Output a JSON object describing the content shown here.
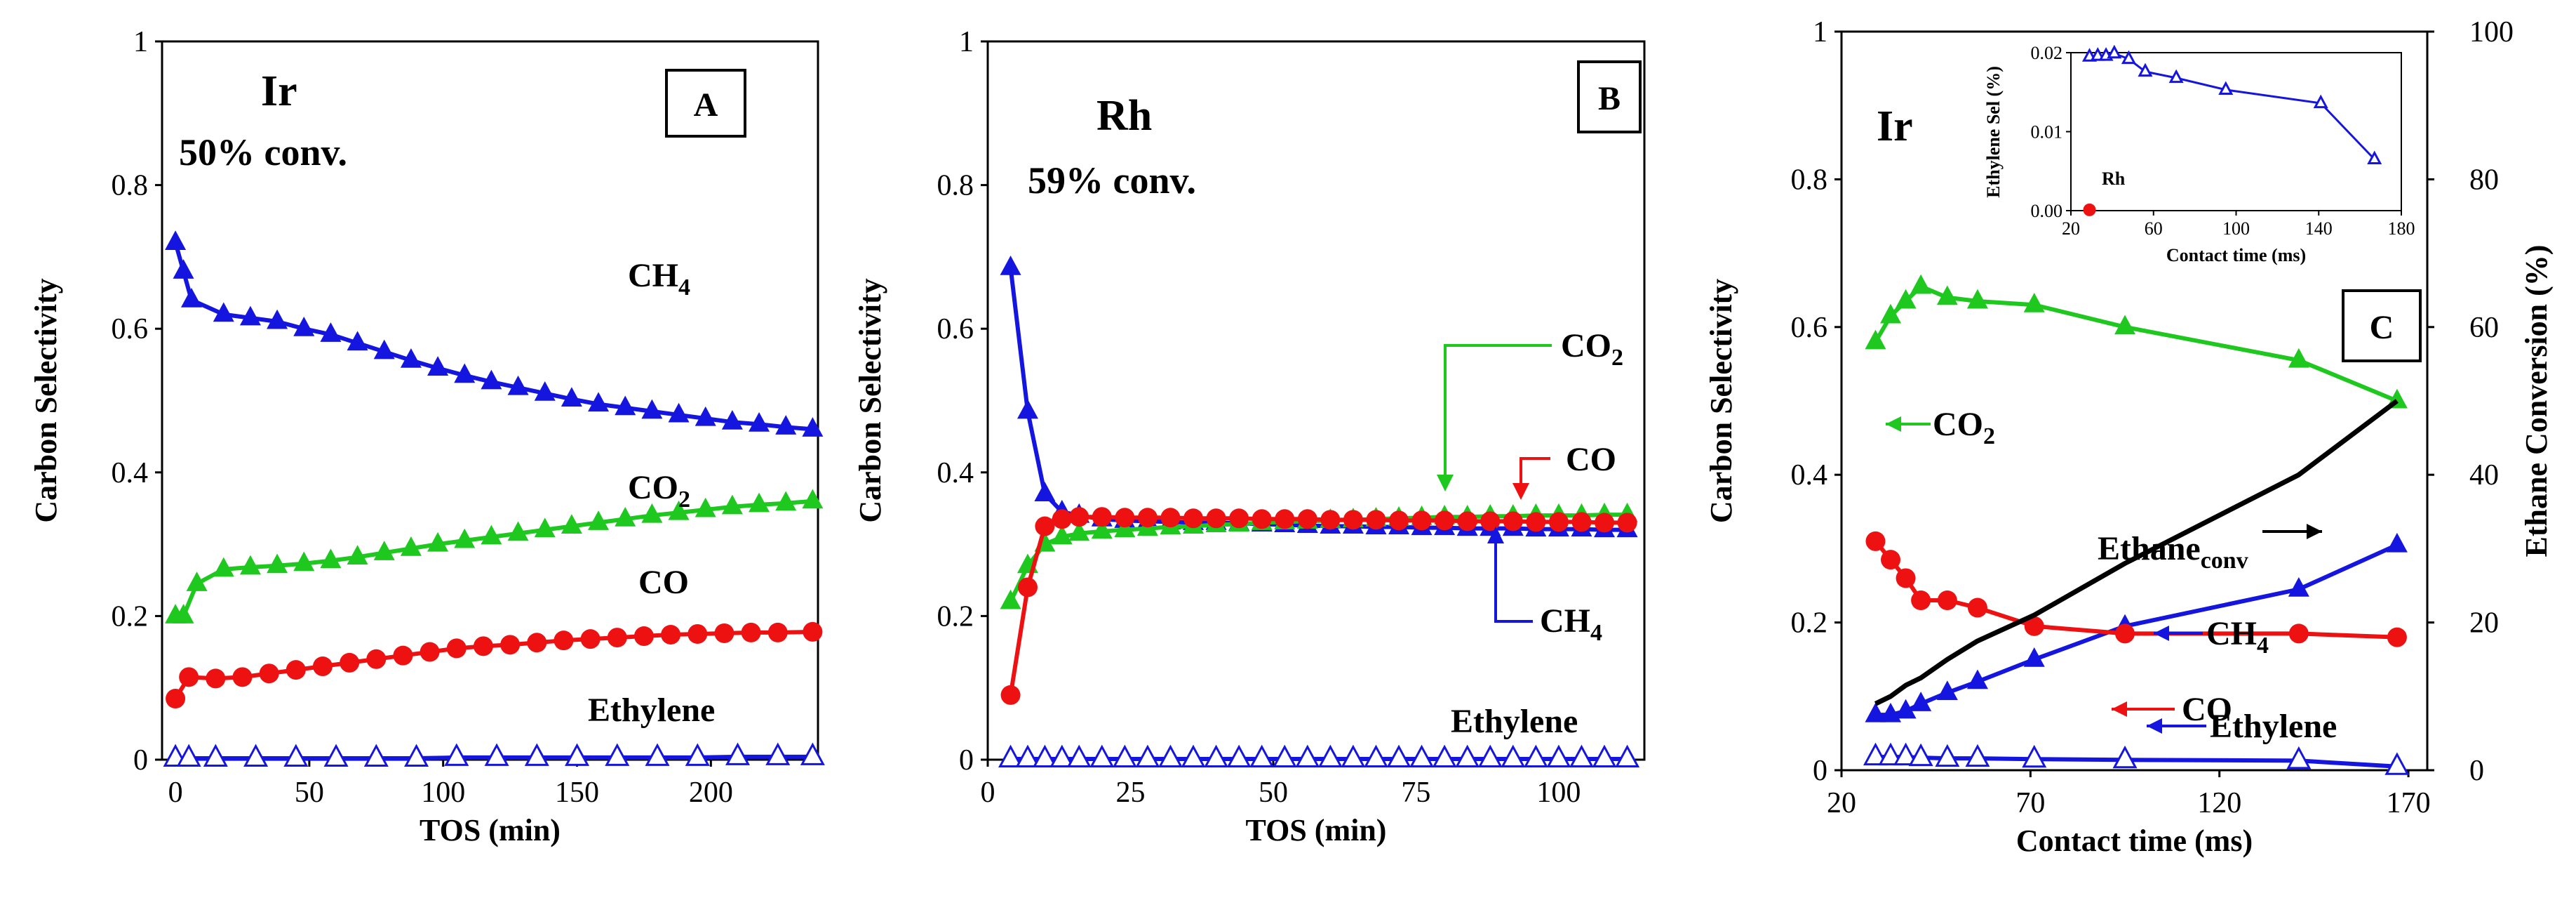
{
  "colors": {
    "ch4": "#1515e0",
    "co2": "#1ec81e",
    "co": "#ee1111",
    "ethylene": "#1515e0",
    "ethane": "#000000",
    "axis": "#000000"
  },
  "chart_data": [
    {
      "type": "line",
      "panel": "A",
      "metal": "Ir",
      "conv_note": "50% conv.",
      "xlabel": "TOS (min)",
      "ylabel": "Carbon Selectivity",
      "xlim": [
        -5,
        240
      ],
      "ylim": [
        0,
        1
      ],
      "xticks": [
        0,
        50,
        100,
        150,
        200
      ],
      "yticks": [
        0,
        0.2,
        0.4,
        0.6,
        0.8,
        1
      ],
      "ytick_labels": [
        "0",
        "0.2",
        "0.4",
        "0.6",
        "0.8",
        "1"
      ],
      "series": [
        {
          "name": "CH4",
          "label_main": "CH",
          "label_sub": "4",
          "color": "ch4",
          "marker": "triangle",
          "x": [
            0,
            3,
            6,
            18,
            28,
            38,
            48,
            58,
            68,
            78,
            88,
            98,
            108,
            118,
            128,
            138,
            148,
            158,
            168,
            178,
            188,
            198,
            208,
            218,
            228,
            238
          ],
          "y": [
            0.72,
            0.68,
            0.64,
            0.62,
            0.615,
            0.61,
            0.6,
            0.592,
            0.58,
            0.568,
            0.556,
            0.545,
            0.535,
            0.526,
            0.518,
            0.51,
            0.502,
            0.495,
            0.49,
            0.485,
            0.48,
            0.475,
            0.47,
            0.467,
            0.463,
            0.46
          ]
        },
        {
          "name": "CO2",
          "label_main": "CO",
          "label_sub": "2",
          "color": "co2",
          "marker": "triangle",
          "x": [
            0,
            3,
            8,
            18,
            28,
            38,
            48,
            58,
            68,
            78,
            88,
            98,
            108,
            118,
            128,
            138,
            148,
            158,
            168,
            178,
            188,
            198,
            208,
            218,
            228,
            238
          ],
          "y": [
            0.2,
            0.2,
            0.245,
            0.265,
            0.268,
            0.27,
            0.273,
            0.277,
            0.282,
            0.288,
            0.294,
            0.3,
            0.305,
            0.31,
            0.315,
            0.32,
            0.325,
            0.33,
            0.335,
            0.34,
            0.344,
            0.348,
            0.352,
            0.355,
            0.357,
            0.36
          ]
        },
        {
          "name": "CO",
          "label_main": "CO",
          "color": "co",
          "marker": "circle",
          "x": [
            0,
            5,
            15,
            25,
            35,
            45,
            55,
            65,
            75,
            85,
            95,
            105,
            115,
            125,
            135,
            145,
            155,
            165,
            175,
            185,
            195,
            205,
            215,
            225,
            238
          ],
          "y": [
            0.085,
            0.115,
            0.113,
            0.115,
            0.12,
            0.125,
            0.13,
            0.135,
            0.14,
            0.145,
            0.15,
            0.155,
            0.158,
            0.16,
            0.163,
            0.166,
            0.168,
            0.17,
            0.172,
            0.174,
            0.175,
            0.176,
            0.177,
            0.177,
            0.178
          ]
        },
        {
          "name": "Ethylene",
          "label_main": "Ethylene",
          "color": "ethylene",
          "marker": "open-triangle",
          "x": [
            0,
            5,
            15,
            30,
            45,
            60,
            75,
            90,
            105,
            120,
            135,
            150,
            165,
            180,
            195,
            210,
            225,
            238
          ],
          "y": [
            0.002,
            0.002,
            0.002,
            0.002,
            0.002,
            0.002,
            0.002,
            0.002,
            0.003,
            0.003,
            0.003,
            0.003,
            0.003,
            0.003,
            0.003,
            0.004,
            0.004,
            0.004
          ]
        }
      ]
    },
    {
      "type": "line",
      "panel": "B",
      "metal": "Rh",
      "conv_note": "59% conv.",
      "xlabel": "TOS (min)",
      "ylabel": "Carbon Selectivity",
      "xlim": [
        0,
        115
      ],
      "ylim": [
        0,
        1
      ],
      "xticks": [
        0,
        25,
        50,
        75,
        100
      ],
      "yticks": [
        0,
        0.2,
        0.4,
        0.6,
        0.8,
        1
      ],
      "ytick_labels": [
        "0",
        "0.2",
        "0.4",
        "0.6",
        "0.8",
        "1"
      ],
      "series": [
        {
          "name": "CH4",
          "label_main": "CH",
          "label_sub": "4",
          "color": "ch4",
          "marker": "triangle",
          "x": [
            4,
            7,
            10,
            13,
            16,
            20,
            24,
            28,
            32,
            36,
            40,
            44,
            48,
            52,
            56,
            60,
            64,
            68,
            72,
            76,
            80,
            84,
            88,
            92,
            96,
            100,
            104,
            108,
            112
          ],
          "y": [
            0.685,
            0.485,
            0.37,
            0.345,
            0.34,
            0.335,
            0.333,
            0.332,
            0.331,
            0.33,
            0.33,
            0.329,
            0.328,
            0.327,
            0.326,
            0.325,
            0.325,
            0.324,
            0.324,
            0.323,
            0.323,
            0.322,
            0.322,
            0.322,
            0.321,
            0.321,
            0.321,
            0.32,
            0.32
          ]
        },
        {
          "name": "CO2",
          "label_main": "CO",
          "label_sub": "2",
          "color": "co2",
          "marker": "triangle",
          "x": [
            4,
            7,
            10,
            13,
            16,
            20,
            24,
            28,
            32,
            36,
            40,
            44,
            48,
            52,
            56,
            60,
            64,
            68,
            72,
            76,
            80,
            84,
            88,
            92,
            96,
            100,
            104,
            108,
            112
          ],
          "y": [
            0.22,
            0.27,
            0.3,
            0.31,
            0.315,
            0.318,
            0.32,
            0.322,
            0.324,
            0.325,
            0.327,
            0.328,
            0.33,
            0.331,
            0.332,
            0.333,
            0.334,
            0.335,
            0.336,
            0.337,
            0.338,
            0.338,
            0.339,
            0.339,
            0.34,
            0.34,
            0.34,
            0.341,
            0.341
          ]
        },
        {
          "name": "CO",
          "label_main": "CO",
          "color": "co",
          "marker": "circle",
          "x": [
            4,
            7,
            10,
            13,
            16,
            20,
            24,
            28,
            32,
            36,
            40,
            44,
            48,
            52,
            56,
            60,
            64,
            68,
            72,
            76,
            80,
            84,
            88,
            92,
            96,
            100,
            104,
            108,
            112
          ],
          "y": [
            0.09,
            0.24,
            0.325,
            0.335,
            0.338,
            0.338,
            0.337,
            0.337,
            0.337,
            0.336,
            0.336,
            0.336,
            0.335,
            0.335,
            0.335,
            0.334,
            0.334,
            0.334,
            0.333,
            0.333,
            0.333,
            0.332,
            0.332,
            0.332,
            0.331,
            0.331,
            0.331,
            0.33,
            0.33
          ]
        },
        {
          "name": "Ethylene",
          "label_main": "Ethylene",
          "color": "ethylene",
          "marker": "open-triangle",
          "x": [
            4,
            7,
            10,
            13,
            16,
            20,
            24,
            28,
            32,
            36,
            40,
            44,
            48,
            52,
            56,
            60,
            64,
            68,
            72,
            76,
            80,
            84,
            88,
            92,
            96,
            100,
            104,
            108,
            112
          ],
          "y": [
            0.001,
            0.001,
            0.001,
            0.001,
            0.001,
            0.001,
            0.001,
            0.001,
            0.001,
            0.001,
            0.001,
            0.001,
            0.001,
            0.001,
            0.001,
            0.001,
            0.001,
            0.001,
            0.001,
            0.001,
            0.001,
            0.001,
            0.001,
            0.001,
            0.001,
            0.001,
            0.001,
            0.001,
            0.001
          ]
        }
      ]
    },
    {
      "type": "line",
      "panel": "C",
      "metal": "Ir",
      "xlabel": "Contact time (ms)",
      "ylabel": "Carbon Selectivity",
      "y2label": "Ethane Conversion (%)",
      "xlim": [
        20,
        175
      ],
      "ylim": [
        0,
        1
      ],
      "y2lim": [
        0,
        100
      ],
      "xticks": [
        20,
        70,
        120,
        170
      ],
      "yticks": [
        0,
        0.2,
        0.4,
        0.6,
        0.8,
        1
      ],
      "ytick_labels": [
        "0",
        "0.2",
        "0.4",
        "0.6",
        "0.8",
        "1"
      ],
      "y2ticks": [
        0,
        20,
        40,
        60,
        80,
        100
      ],
      "series": [
        {
          "name": "CO2",
          "label_main": "CO",
          "label_sub": "2",
          "color": "co2",
          "marker": "triangle",
          "x": [
            29,
            33,
            37,
            41,
            48,
            56,
            71,
            95,
            141,
            167
          ],
          "y": [
            0.58,
            0.615,
            0.635,
            0.655,
            0.64,
            0.635,
            0.63,
            0.6,
            0.555,
            0.5
          ]
        },
        {
          "name": "CH4",
          "label_main": "CH",
          "label_sub": "4",
          "color": "ch4",
          "marker": "triangle",
          "x": [
            29,
            33,
            37,
            41,
            48,
            56,
            71,
            95,
            141,
            167
          ],
          "y": [
            0.075,
            0.075,
            0.08,
            0.09,
            0.105,
            0.12,
            0.15,
            0.195,
            0.245,
            0.305
          ]
        },
        {
          "name": "CO",
          "label_main": "CO",
          "color": "co",
          "marker": "circle",
          "x": [
            29,
            33,
            37,
            41,
            48,
            56,
            71,
            95,
            141,
            167
          ],
          "y": [
            0.31,
            0.285,
            0.26,
            0.23,
            0.23,
            0.22,
            0.195,
            0.185,
            0.185,
            0.18
          ]
        },
        {
          "name": "Ethylene",
          "label_main": "Ethylene",
          "color": "ethylene",
          "marker": "open-triangle",
          "x": [
            29,
            33,
            37,
            41,
            48,
            56,
            71,
            95,
            141,
            167
          ],
          "y": [
            0.018,
            0.018,
            0.018,
            0.017,
            0.016,
            0.016,
            0.015,
            0.014,
            0.013,
            0.005
          ]
        },
        {
          "name": "Ethane conversion",
          "label_main": "Ethane",
          "label_sub": "conv",
          "color": "ethane",
          "marker": "none",
          "axis": "y2",
          "x": [
            29,
            33,
            37,
            41,
            48,
            56,
            71,
            95,
            141,
            167
          ],
          "y": [
            9,
            10,
            11.5,
            12.5,
            15,
            17.5,
            21,
            28,
            40,
            50
          ]
        }
      ],
      "inset": {
        "ylabel": "Ethylene Sel (%)",
        "xlabel": "Contact time (ms)",
        "xlim": [
          20,
          180
        ],
        "ylim": [
          0,
          0.02
        ],
        "xticks": [
          20,
          60,
          100,
          140,
          180
        ],
        "yticks": [
          0,
          0.01,
          0.02
        ],
        "ytick_labels": [
          "0.00",
          "0.01",
          "0.02"
        ],
        "rh_label": "Rh",
        "series": [
          {
            "name": "Ir ethylene selectivity",
            "color": "ethylene",
            "marker": "open-triangle",
            "x": [
              29,
              33,
              37,
              41,
              48,
              56,
              71,
              95,
              141,
              167
            ],
            "y": [
              0.0195,
              0.0196,
              0.0196,
              0.0199,
              0.0192,
              0.0176,
              0.0168,
              0.0153,
              0.0136,
              0.0065
            ]
          },
          {
            "name": "Rh ethylene selectivity",
            "color": "co",
            "marker": "circle",
            "x": [
              29
            ],
            "y": [
              0.0001
            ]
          }
        ]
      }
    }
  ]
}
